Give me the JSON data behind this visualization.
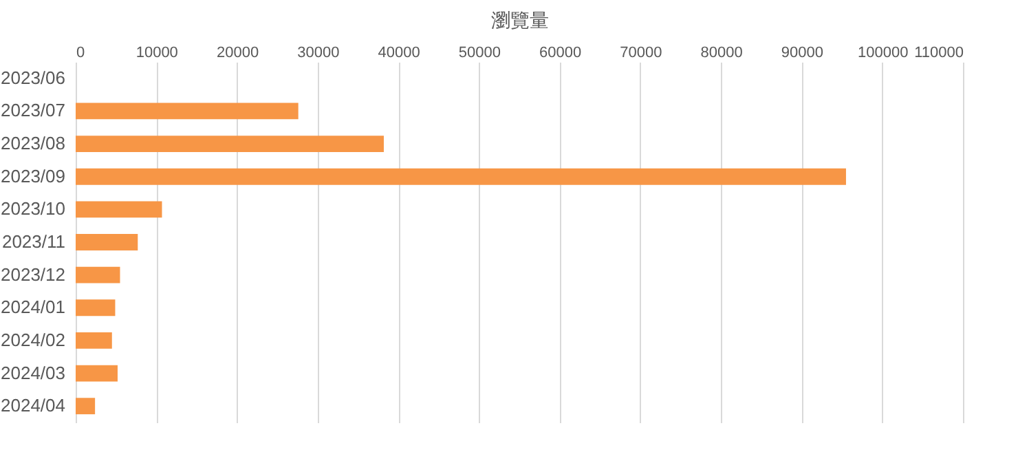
{
  "chart_data": {
    "type": "bar",
    "orientation": "horizontal",
    "xlabel": "瀏覽量",
    "categories": [
      "2023/06",
      "2023/07",
      "2023/08",
      "2023/09",
      "2023/10",
      "2023/11",
      "2023/12",
      "2024/01",
      "2024/02",
      "2024/03",
      "2024/04"
    ],
    "values": [
      0,
      27600,
      38200,
      95500,
      10700,
      7700,
      5500,
      4900,
      4500,
      5200,
      2400
    ],
    "color": "#f79646",
    "xlim": [
      0,
      110000
    ],
    "xticks": [
      0,
      10000,
      20000,
      30000,
      40000,
      50000,
      60000,
      70000,
      80000,
      90000,
      100000,
      110000
    ],
    "grid": "x"
  }
}
